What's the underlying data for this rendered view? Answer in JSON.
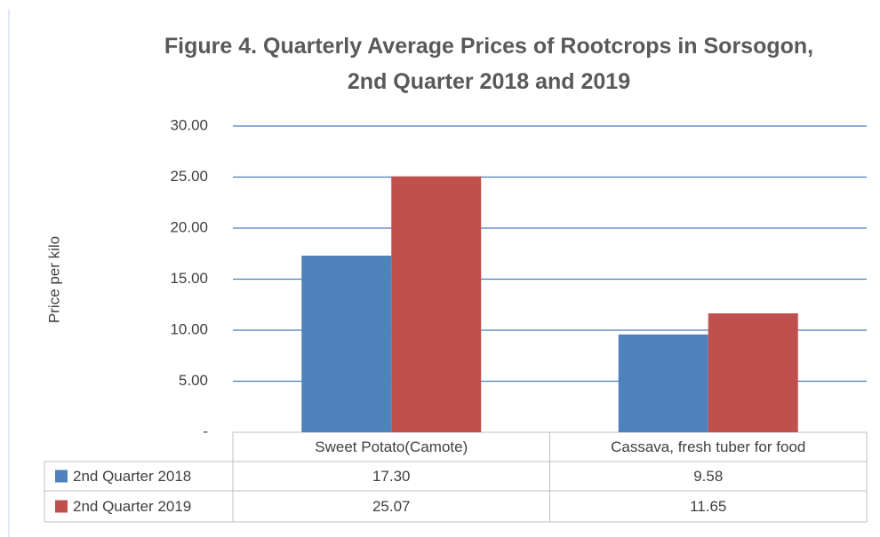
{
  "chart_data": {
    "type": "bar",
    "title": "Figure 4. Quarterly Average Prices of Rootcrops in Sorsogon, 2nd Quarter 2018 and 2019",
    "y_label": "Price per kilo",
    "categories": [
      "Sweet Potato(Camote)",
      "Cassava, fresh tuber for food"
    ],
    "series": [
      {
        "name": "2nd Quarter 2018",
        "color": "#4f81bd",
        "values": [
          17.3,
          9.58
        ],
        "value_labels": [
          "17.30",
          "9.58"
        ]
      },
      {
        "name": "2nd Quarter 2019",
        "color": "#c0504d",
        "values": [
          25.07,
          11.65
        ],
        "value_labels": [
          "25.07",
          "11.65"
        ]
      }
    ],
    "ylim": [
      0,
      30
    ],
    "yticks": [
      {
        "value": 0,
        "label": "-"
      },
      {
        "value": 5,
        "label": "5.00"
      },
      {
        "value": 10,
        "label": "10.00"
      },
      {
        "value": 15,
        "label": "15.00"
      },
      {
        "value": 20,
        "label": "20.00"
      },
      {
        "value": 25,
        "label": "25.00"
      },
      {
        "value": 30,
        "label": "30.00"
      }
    ],
    "grid": true,
    "grid_color": "#4a7ebb",
    "legend": "data-table"
  }
}
